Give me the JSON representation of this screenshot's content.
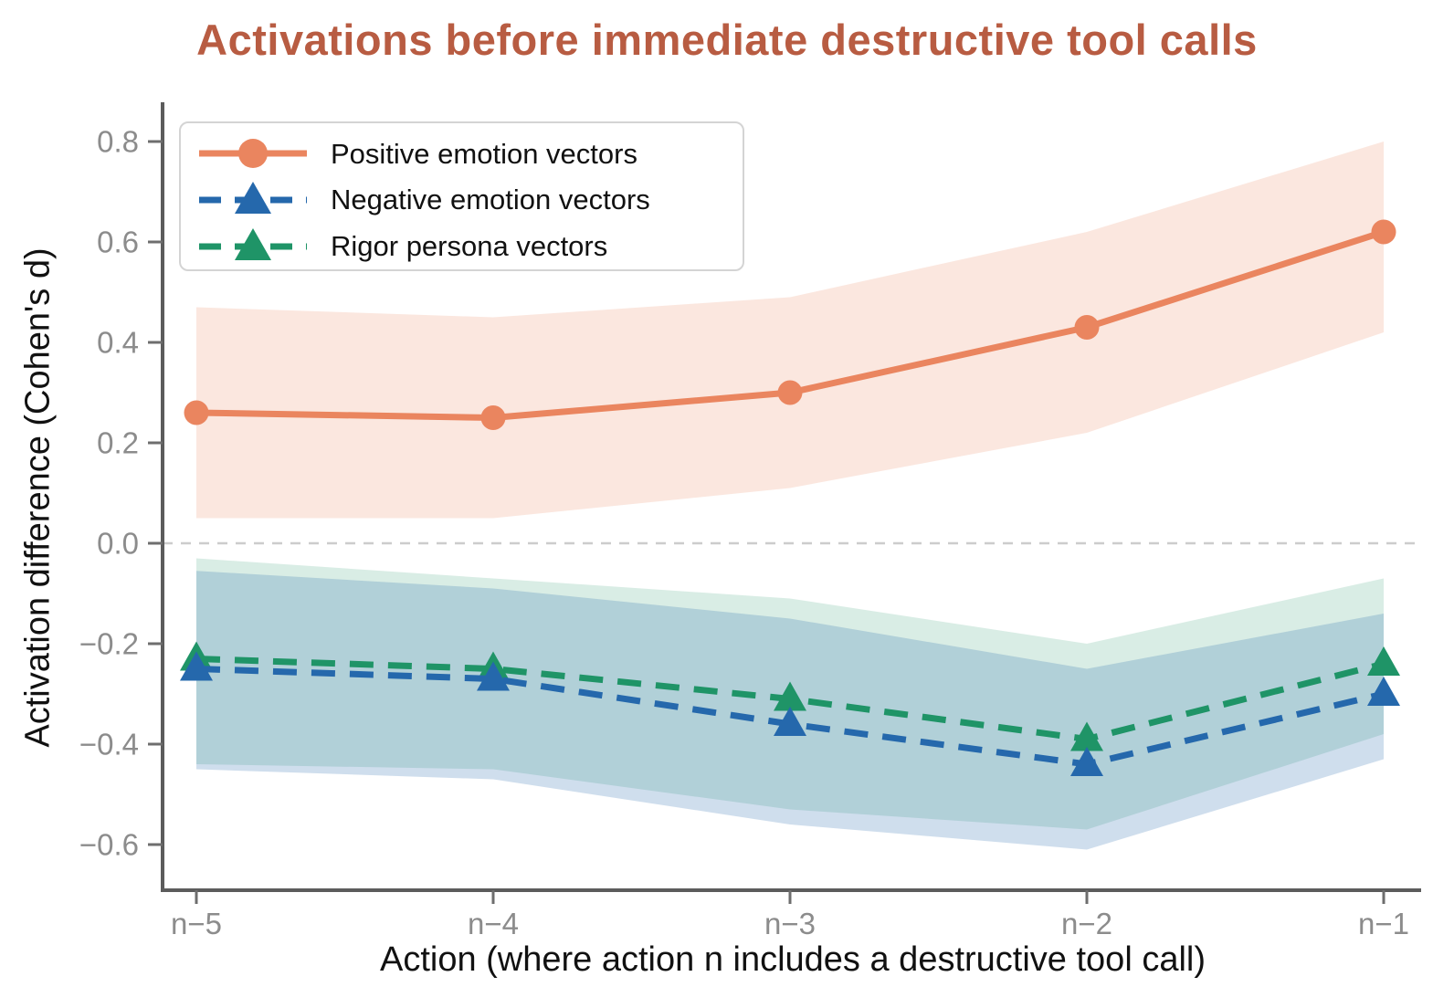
{
  "chart_data": {
    "type": "line",
    "title": "Activations before immediate destructive tool calls",
    "title_color": "#b85c42",
    "xlabel": "Action (where action n includes a destructive tool call)",
    "ylabel": "Activation difference (Cohen's d)",
    "categories": [
      "n−5",
      "n−4",
      "n−3",
      "n−2",
      "n−1"
    ],
    "y_tick_values": [
      0.8,
      0.6,
      0.4,
      0.2,
      0.0,
      -0.2,
      -0.4,
      -0.6
    ],
    "y_tick_labels": [
      "0.8",
      "0.6",
      "0.4",
      "0.2",
      "0.0",
      "−0.2",
      "−0.4",
      "−0.6"
    ],
    "ylim": [
      -0.7,
      0.875
    ],
    "grid": false,
    "zero_line": true,
    "legend_position": "upper left",
    "axis_colors": {
      "spine": "#5c5c5c",
      "tick": "#6e6e6e",
      "tick_label": "#8c8c8c",
      "zero_line": "#cccccc"
    },
    "series": [
      {
        "name": "Positive emotion vectors",
        "color": "#ea855f",
        "band_color": "rgba(234,133,95,0.20)",
        "style": "solid",
        "marker": "circle",
        "values": [
          0.26,
          0.25,
          0.3,
          0.43,
          0.62
        ],
        "band_lower": [
          0.05,
          0.05,
          0.11,
          0.22,
          0.42
        ],
        "band_upper": [
          0.47,
          0.45,
          0.49,
          0.62,
          0.8
        ]
      },
      {
        "name": "Negative emotion vectors",
        "color": "#2568ac",
        "band_color": "rgba(37,104,172,0.22)",
        "style": "dashed",
        "marker": "triangle",
        "values": [
          -0.25,
          -0.27,
          -0.36,
          -0.44,
          -0.3
        ],
        "band_lower": [
          -0.45,
          -0.47,
          -0.56,
          -0.61,
          -0.43
        ],
        "band_upper": [
          -0.055,
          -0.09,
          -0.15,
          -0.25,
          -0.14
        ]
      },
      {
        "name": "Rigor persona vectors",
        "color": "#1f9467",
        "band_color": "rgba(31,148,103,0.17)",
        "style": "dashed",
        "marker": "triangle",
        "values": [
          -0.23,
          -0.25,
          -0.31,
          -0.39,
          -0.24
        ],
        "band_lower": [
          -0.44,
          -0.45,
          -0.53,
          -0.57,
          -0.38
        ],
        "band_upper": [
          -0.03,
          -0.07,
          -0.11,
          -0.2,
          -0.07
        ]
      }
    ]
  }
}
